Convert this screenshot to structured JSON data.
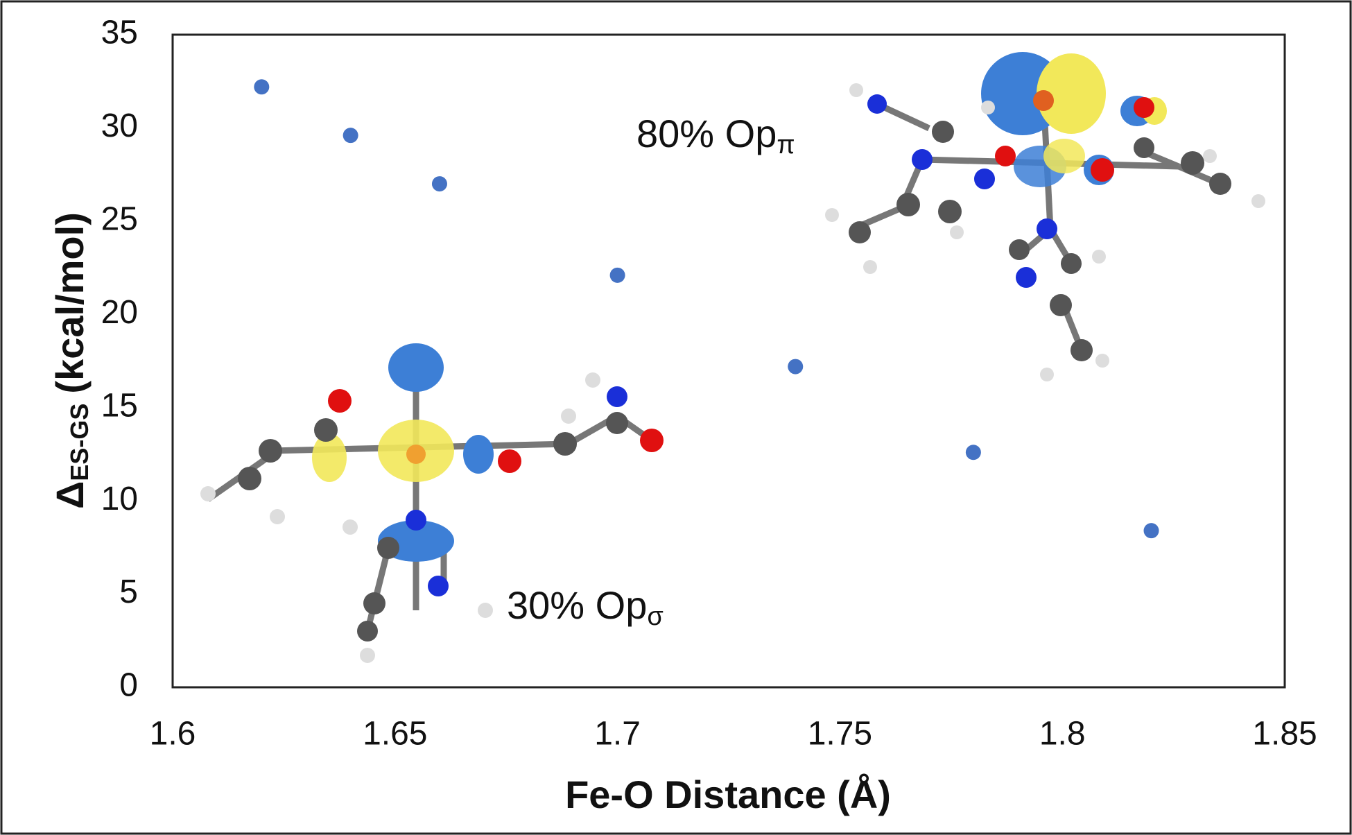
{
  "chart_data": {
    "type": "scatter",
    "x_label": "Fe-O Distance (Å)",
    "y_label": {
      "main": "Δ",
      "sub": "ES-GS",
      "unit": "(kcal/mol)"
    },
    "x": [
      1.62,
      1.64,
      1.66,
      1.7,
      1.74,
      1.78,
      1.82
    ],
    "values": [
      32.2,
      29.6,
      27.0,
      22.1,
      17.2,
      12.6,
      8.4
    ],
    "color": "#4472c4",
    "xlim": [
      1.6,
      1.85
    ],
    "xticks": [
      1.6,
      1.65,
      1.7,
      1.75,
      1.8,
      1.85
    ],
    "ylim": [
      0,
      35
    ],
    "yticks": [
      0,
      5,
      10,
      15,
      20,
      25,
      30,
      35
    ],
    "grid": false,
    "annotations": [
      {
        "text": "80% Op",
        "sub": "π"
      },
      {
        "text": "30% Op",
        "sub": "σ"
      }
    ]
  }
}
